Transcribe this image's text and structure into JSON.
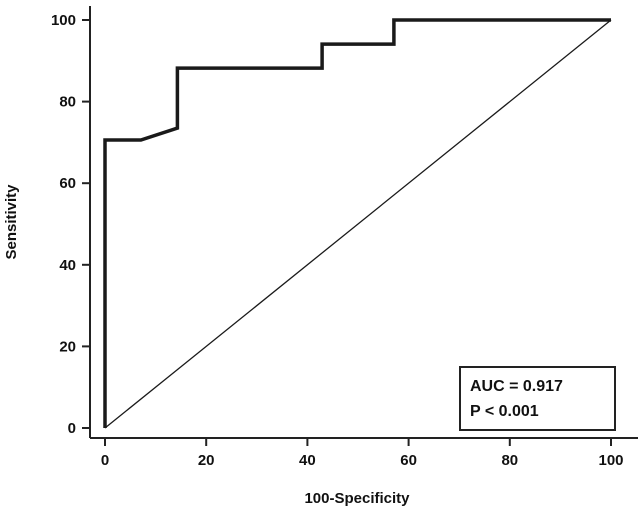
{
  "chart_data": {
    "type": "line",
    "xlabel": "100-Specificity",
    "ylabel": "Sensitivity",
    "xlim": [
      0,
      100
    ],
    "ylim": [
      0,
      100
    ],
    "x_ticks": [
      0,
      20,
      40,
      60,
      80,
      100
    ],
    "y_ticks": [
      0,
      20,
      40,
      60,
      80,
      100
    ],
    "grid": false,
    "series": [
      {
        "style": "thick-step",
        "color": "#1a1a1a",
        "x": [
          0,
          0,
          7.1,
          14.3,
          14.3,
          42.9,
          42.9,
          57.1,
          57.1,
          100
        ],
        "y": [
          0,
          70.6,
          70.6,
          73.5,
          88.2,
          88.2,
          94.1,
          94.1,
          100,
          100
        ]
      },
      {
        "style": "thin-diagonal",
        "color": "#1a1a1a",
        "x": [
          0,
          100
        ],
        "y": [
          0,
          100
        ]
      }
    ],
    "annotation": {
      "lines": [
        "AUC = 0.917",
        "P < 0.001"
      ],
      "position": "bottom-right"
    }
  }
}
